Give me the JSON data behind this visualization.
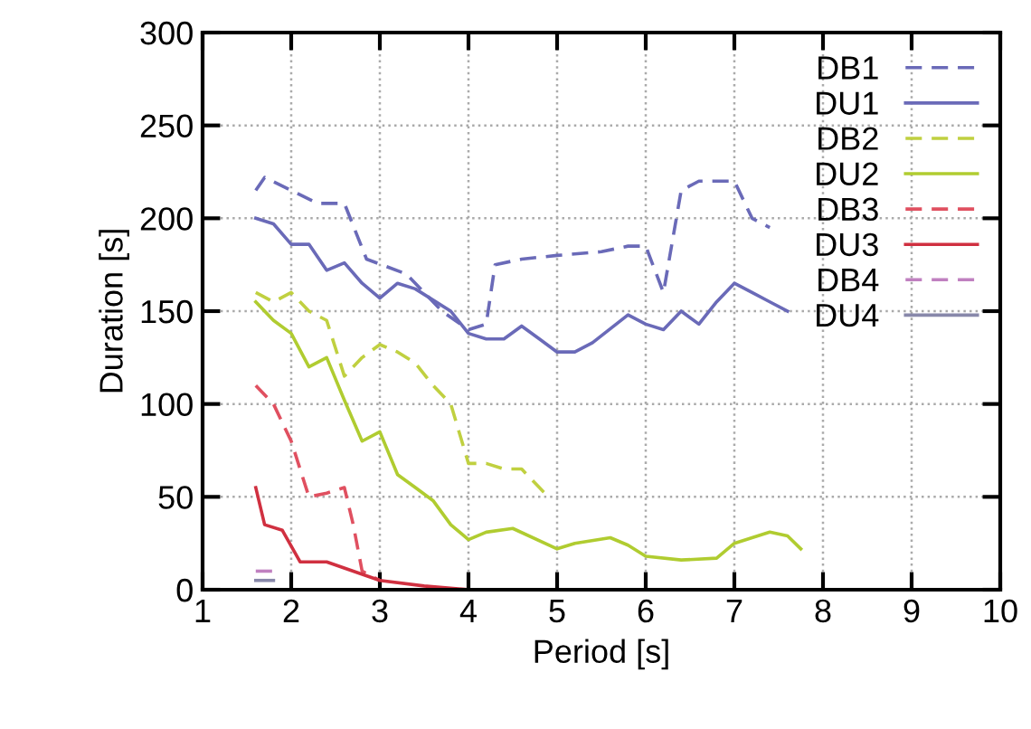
{
  "chart_data": {
    "type": "line",
    "xlabel": "Period [s]",
    "ylabel": "Duration [s]",
    "xlim": [
      1,
      10
    ],
    "xticks": [
      1,
      2,
      3,
      4,
      5,
      6,
      7,
      8,
      9,
      10
    ],
    "ylim": [
      0,
      300
    ],
    "yticks": [
      0,
      50,
      100,
      150,
      200,
      250,
      300
    ],
    "grid": true,
    "legend": "top right",
    "series": [
      {
        "name": "DB1",
        "color": "#6a6ab8",
        "line_style": "dashed",
        "x": [
          1.6,
          1.7,
          2.0,
          2.3,
          2.6,
          2.85,
          3.3,
          3.7,
          4.0,
          4.2,
          4.3,
          4.6,
          5.0,
          5.5,
          5.8,
          6.0,
          6.2,
          6.4,
          6.6,
          7.0,
          7.2,
          7.4
        ],
        "values": [
          215,
          222,
          215,
          208,
          208,
          178,
          170,
          150,
          140,
          143,
          175,
          178,
          180,
          182,
          185,
          185,
          160,
          215,
          220,
          220,
          200,
          195
        ]
      },
      {
        "name": "DU1",
        "color": "#6a6ab8",
        "line_style": "solid",
        "x": [
          1.6,
          1.8,
          2.0,
          2.2,
          2.4,
          2.6,
          2.8,
          3.0,
          3.2,
          3.4,
          3.8,
          4.0,
          4.2,
          4.4,
          4.6,
          4.8,
          5.0,
          5.2,
          5.4,
          5.8,
          6.0,
          6.2,
          6.4,
          6.6,
          6.8,
          7.0,
          7.2,
          7.4,
          7.6
        ],
        "values": [
          200,
          197,
          186,
          186,
          172,
          176,
          165,
          157,
          165,
          162,
          150,
          138,
          135,
          135,
          142,
          135,
          128,
          128,
          133,
          148,
          143,
          140,
          150,
          143,
          155,
          165,
          160,
          155,
          150
        ]
      },
      {
        "name": "DB2",
        "color": "#c0d040",
        "line_style": "dashed",
        "x": [
          1.6,
          1.8,
          2.0,
          2.2,
          2.4,
          2.6,
          2.8,
          3.0,
          3.2,
          3.4,
          3.6,
          3.8,
          4.0,
          4.2,
          4.4,
          4.6,
          4.8,
          4.9
        ],
        "values": [
          160,
          155,
          160,
          150,
          145,
          115,
          125,
          132,
          128,
          122,
          110,
          100,
          68,
          68,
          65,
          65,
          55,
          50
        ]
      },
      {
        "name": "DU2",
        "color": "#b0cc30",
        "line_style": "solid",
        "x": [
          1.6,
          1.8,
          2.0,
          2.2,
          2.4,
          2.6,
          2.8,
          3.0,
          3.2,
          3.4,
          3.6,
          3.8,
          4.0,
          4.2,
          4.5,
          5.0,
          5.2,
          5.6,
          5.8,
          6.0,
          6.4,
          6.8,
          7.0,
          7.4,
          7.6,
          7.75
        ],
        "values": [
          155,
          145,
          138,
          120,
          125,
          102,
          80,
          85,
          62,
          55,
          48,
          35,
          27,
          31,
          33,
          22,
          25,
          28,
          24,
          18,
          16,
          17,
          25,
          31,
          29,
          22
        ]
      },
      {
        "name": "DB3",
        "color": "#e05060",
        "line_style": "dashed",
        "x": [
          1.6,
          1.8,
          2.0,
          2.2,
          2.4,
          2.6,
          2.7,
          2.8,
          3.0
        ],
        "values": [
          110,
          100,
          80,
          50,
          52,
          55,
          35,
          10,
          5
        ]
      },
      {
        "name": "DU3",
        "color": "#d03040",
        "line_style": "solid",
        "x": [
          1.6,
          1.7,
          1.9,
          2.1,
          2.4,
          2.7,
          3.0,
          3.5,
          4.0
        ],
        "values": [
          55,
          35,
          32,
          15,
          15,
          10,
          5,
          2,
          0
        ]
      },
      {
        "name": "DB4",
        "color": "#c080c0",
        "line_style": "dashed",
        "x": [
          1.6,
          1.8
        ],
        "values": [
          10,
          10
        ]
      },
      {
        "name": "DU4",
        "color": "#8888aa",
        "line_style": "solid",
        "x": [
          1.6,
          1.8
        ],
        "values": [
          5,
          5
        ]
      }
    ]
  }
}
